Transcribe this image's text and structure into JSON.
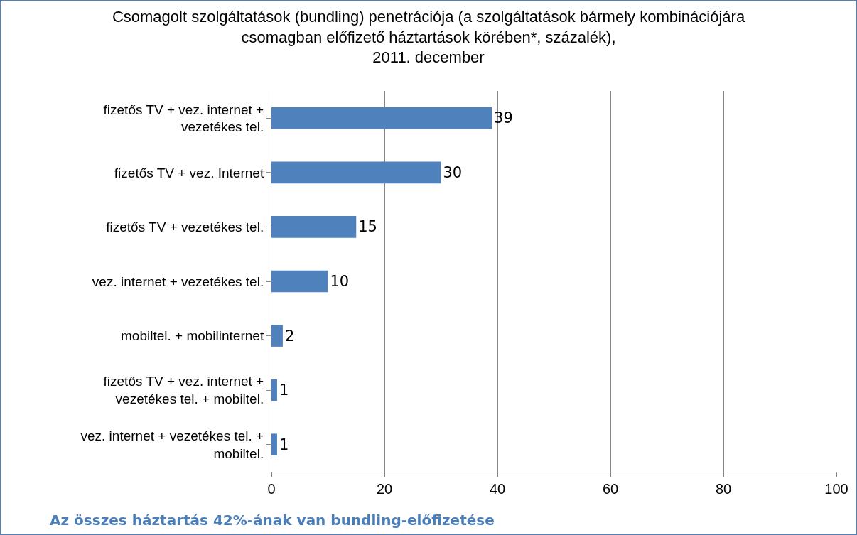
{
  "chart_data": {
    "type": "bar",
    "orientation": "horizontal",
    "title": "Csomagolt szolgáltatások (bundling) penetrációja (a szolgáltatások bármely kombinációjára\ncsomagban előfizető háztartások körében*, százalék),\n2011. december",
    "categories": [
      "fizetős TV + vez. internet + vezetékes tel.",
      "fizetős TV + vez. Internet",
      "fizetős TV + vezetékes tel.",
      "vez. internet + vezetékes tel.",
      "mobiltel. + mobilinternet",
      "fizetős TV + vez. internet + vezetékes tel. + mobiltel.",
      "vez. internet + vezetékes tel. + mobiltel."
    ],
    "values": [
      39,
      30,
      15,
      10,
      2,
      1,
      1
    ],
    "color": "#4f81bd",
    "xlim": [
      0,
      100
    ],
    "xticks": [
      0,
      20,
      40,
      60,
      80,
      100
    ],
    "grid": "x",
    "data_labels": true,
    "annotations": [
      "Az összes háztartás 42%-ának van bundling-előfizetése"
    ]
  }
}
